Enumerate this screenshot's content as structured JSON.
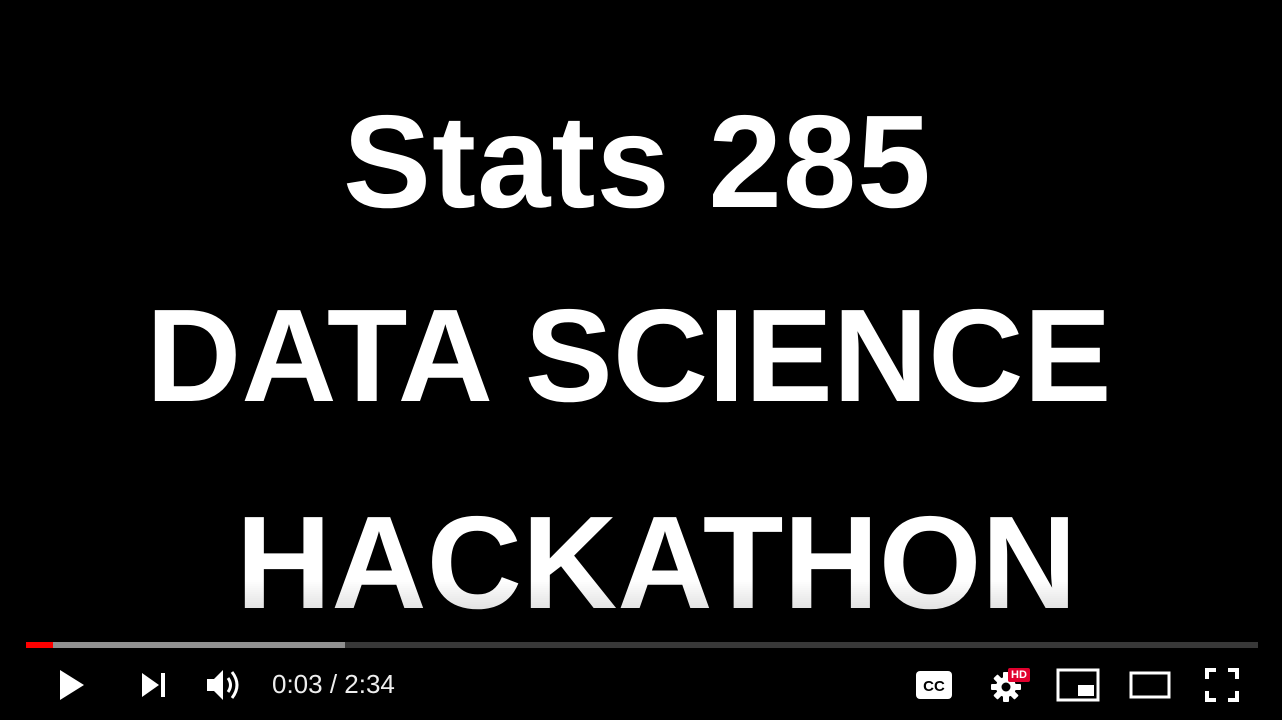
{
  "slide": {
    "line1": "Stats 285",
    "line2": "DATA SCIENCE",
    "line3": "HACKATHON"
  },
  "player": {
    "progress": {
      "played_fraction": 0.022,
      "buffered_fraction": 0.259,
      "played_color": "#ff0000"
    },
    "time": {
      "current": "0:03",
      "separator": " / ",
      "duration": "2:34"
    },
    "controls": {
      "play_icon": "play-icon",
      "next_icon": "next-icon",
      "volume_icon": "volume-icon",
      "cc_label": "CC",
      "settings_icon": "gear-icon",
      "hd_badge": "HD",
      "miniplayer_icon": "miniplayer-icon",
      "theater_icon": "theater-icon",
      "fullscreen_icon": "fullscreen-icon"
    }
  }
}
